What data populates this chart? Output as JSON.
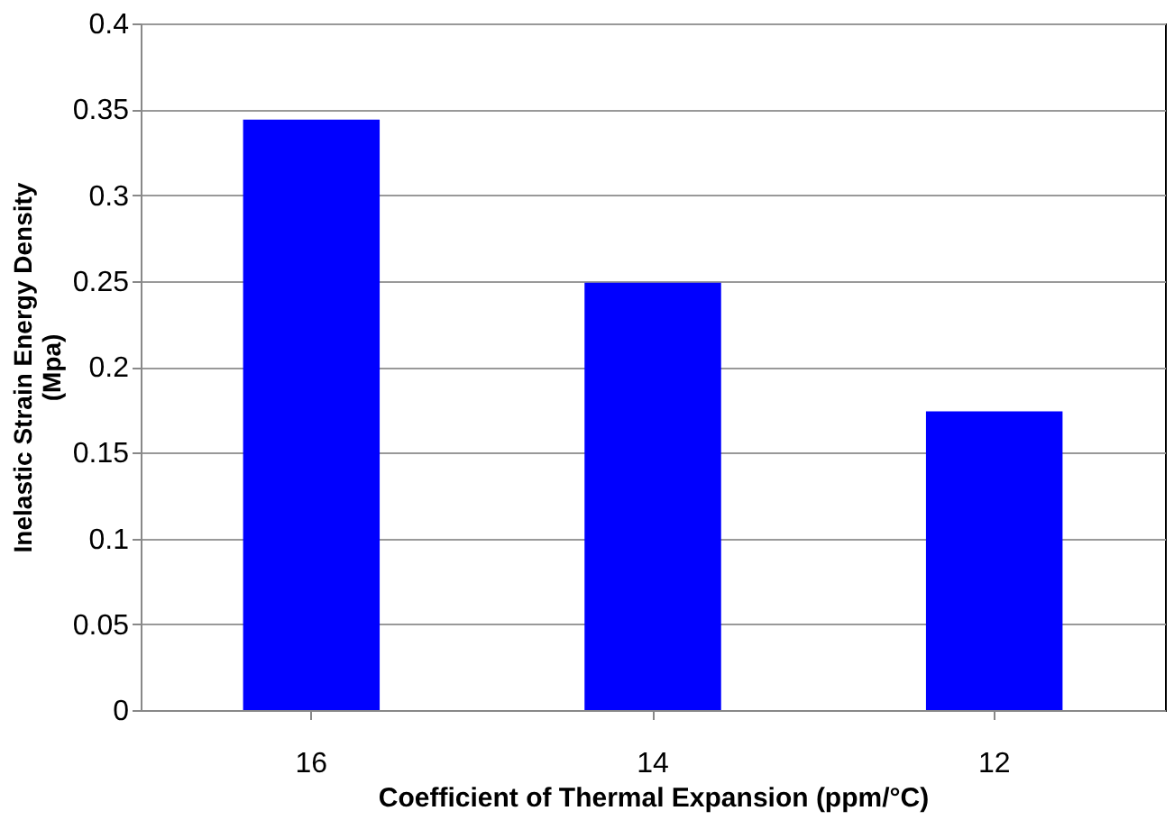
{
  "chart_data": {
    "type": "bar",
    "xlabel": "Coefficient of Thermal Expansion (ppm/°C)",
    "ylabel": "Inelastic Strain Energy Density\n(Mpa)",
    "categories": [
      "16",
      "14",
      "12"
    ],
    "values": [
      0.344,
      0.249,
      0.174
    ],
    "color": "#0000ff",
    "ylim": [
      0,
      0.4
    ],
    "yticks": [
      0,
      0.05,
      0.1,
      0.15,
      0.2,
      0.25,
      0.3,
      0.35,
      0.4
    ],
    "grid": "y"
  }
}
